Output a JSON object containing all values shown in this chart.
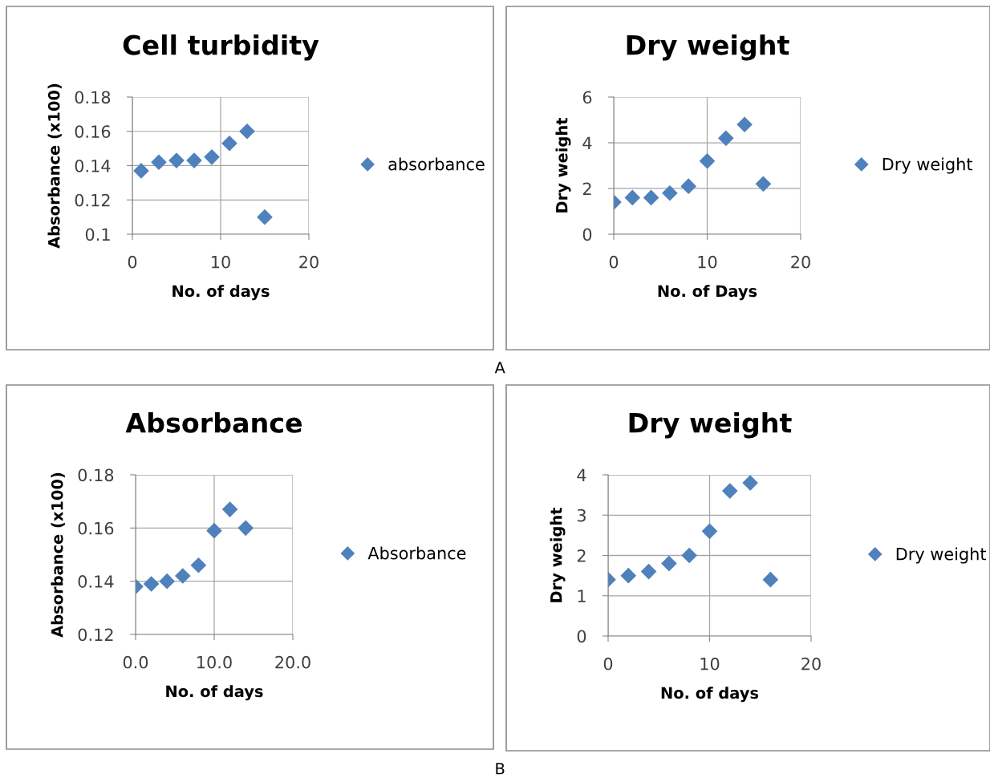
{
  "chart_data": [
    {
      "type": "scatter",
      "title": "Cell turbidity",
      "xlabel": "No. of days",
      "ylabel": "Absorbance (x100)",
      "x": [
        1,
        3,
        5,
        7,
        9,
        11,
        13,
        15
      ],
      "series": [
        {
          "name": "absorbance",
          "color": "#4f81bd",
          "values": [
            0.137,
            0.142,
            0.143,
            0.143,
            0.145,
            0.153,
            0.16,
            0.11
          ]
        }
      ],
      "xlim": [
        0,
        20
      ],
      "xticks": [
        0,
        10,
        20
      ],
      "ylim": [
        0.1,
        0.18
      ],
      "yticks": [
        {
          "value": 0.1,
          "label": "0.1"
        },
        0.12,
        0.14,
        0.16,
        0.18
      ],
      "grid": true,
      "legend": "right",
      "marker": "diamond"
    },
    {
      "type": "scatter",
      "title": "Dry weight",
      "xlabel": "No. of Days",
      "ylabel": "Dry weight",
      "x": [
        0,
        2,
        4,
        6,
        8,
        10,
        12,
        14,
        16
      ],
      "series": [
        {
          "name": "Dry weight",
          "color": "#4f81bd",
          "values": [
            1.4,
            1.6,
            1.6,
            1.8,
            2.1,
            3.2,
            4.2,
            4.8,
            2.2
          ]
        }
      ],
      "xlim": [
        0,
        20
      ],
      "xticks": [
        0,
        10,
        20
      ],
      "ylim": [
        0,
        6
      ],
      "yticks": [
        0,
        2,
        4,
        6
      ],
      "grid": true,
      "legend": "right",
      "marker": "diamond",
      "annotations": [
        "A"
      ]
    },
    {
      "type": "scatter",
      "title": "Absorbance",
      "xlabel": "No. of days",
      "ylabel": "Absorbance (x100)",
      "x": [
        0,
        2,
        4,
        6,
        8,
        10,
        12,
        14
      ],
      "series": [
        {
          "name": "Absorbance",
          "color": "#4f81bd",
          "values": [
            0.138,
            0.139,
            0.14,
            0.142,
            0.146,
            0.159,
            0.167,
            0.16
          ]
        }
      ],
      "xlim": [
        0,
        20
      ],
      "xticks": [
        {
          "value": 0,
          "label": "0.0"
        },
        {
          "value": 10,
          "label": "10.0"
        },
        {
          "value": 20,
          "label": "20.0"
        }
      ],
      "ylim": [
        0.12,
        0.18
      ],
      "yticks": [
        0.12,
        0.14,
        0.16,
        0.18
      ],
      "grid": true,
      "legend": "right",
      "marker": "diamond"
    },
    {
      "type": "scatter",
      "title": "Dry weight",
      "xlabel": "No. of days",
      "ylabel": "Dry weight",
      "x": [
        0,
        2,
        4,
        6,
        8,
        10,
        12,
        14,
        16
      ],
      "series": [
        {
          "name": "Dry weight",
          "color": "#4f81bd",
          "values": [
            1.4,
            1.5,
            1.6,
            1.8,
            2.0,
            2.6,
            3.6,
            3.8,
            1.4
          ]
        }
      ],
      "xlim": [
        0,
        20
      ],
      "xticks": [
        0,
        10,
        20
      ],
      "ylim": [
        0,
        4
      ],
      "yticks": [
        0,
        1,
        2,
        3,
        4
      ],
      "grid": true,
      "legend": "right",
      "marker": "diamond",
      "annotations": [
        "B"
      ]
    }
  ]
}
